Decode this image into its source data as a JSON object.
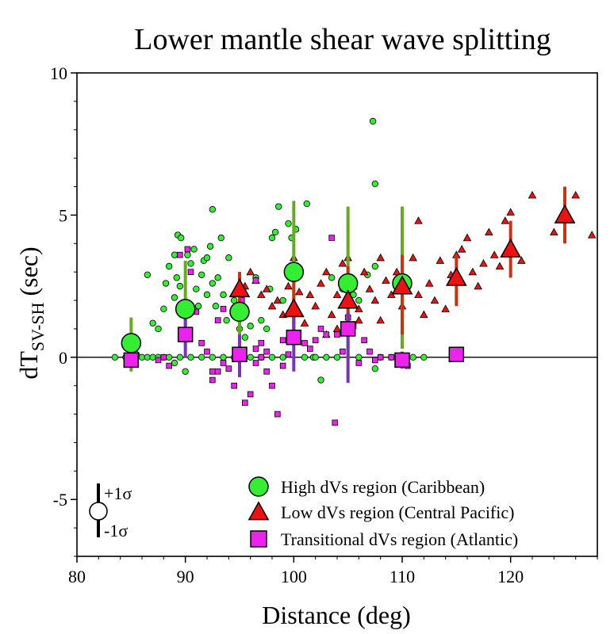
{
  "chart_data": {
    "type": "scatter",
    "title": "Lower mantle shear wave splitting",
    "xlabel": "Distance (deg)",
    "ylabel": {
      "main": "dT",
      "sub": "SV-SH",
      "unit": "(sec)"
    },
    "xlim": [
      80,
      128
    ],
    "ylim": [
      -7,
      10
    ],
    "xticks": [
      "80",
      "90",
      "100",
      "110",
      "120"
    ],
    "yticks": [
      "-5",
      "0",
      "5",
      "10"
    ],
    "grid": false,
    "zero_line": true,
    "legend_placement": "bottom-right",
    "sigma_key": {
      "plus": "+1σ",
      "minus": "-1σ"
    },
    "colors": {
      "high": "#33ee33",
      "low": "#ee1111",
      "transitional": "#ee22ee",
      "high_bar": "#66aa22",
      "low_bar": "#cc3311",
      "transitional_bar": "#7733bb"
    },
    "series": [
      {
        "key": "high",
        "name": "High dVs region (Caribbean)",
        "marker": "circle",
        "points": [
          [
            83.5,
            0
          ],
          [
            84.5,
            0
          ],
          [
            85.5,
            0.1
          ],
          [
            86,
            0
          ],
          [
            86.5,
            0
          ],
          [
            87,
            0
          ],
          [
            87.5,
            0
          ],
          [
            88,
            0
          ],
          [
            86.5,
            2.9
          ],
          [
            87,
            1.2
          ],
          [
            87.5,
            1
          ],
          [
            88,
            1.7
          ],
          [
            88.2,
            2.6
          ],
          [
            88.5,
            3.2
          ],
          [
            89,
            2.1
          ],
          [
            89.3,
            4.3
          ],
          [
            89.6,
            4.2
          ],
          [
            89,
            3.6
          ],
          [
            89.2,
            2.8
          ],
          [
            89.5,
            2.5
          ],
          [
            89.8,
            1.5
          ],
          [
            90.2,
            3.6
          ],
          [
            90.5,
            3.3
          ],
          [
            90.8,
            3.8
          ],
          [
            91,
            2.4
          ],
          [
            91.2,
            1.8
          ],
          [
            91.5,
            2.9
          ],
          [
            91.7,
            3.4
          ],
          [
            92,
            3.5
          ],
          [
            92.3,
            3.9
          ],
          [
            92.5,
            5.2
          ],
          [
            92,
            2.2
          ],
          [
            92.5,
            2.6
          ],
          [
            92.8,
            1.8
          ],
          [
            93,
            2.8
          ],
          [
            93.3,
            4.2
          ],
          [
            93.5,
            2.2
          ],
          [
            93.8,
            1.3
          ],
          [
            94,
            3.5
          ],
          [
            94.5,
            2.0
          ],
          [
            88.5,
            0
          ],
          [
            89.5,
            0
          ],
          [
            90.5,
            0
          ],
          [
            91.5,
            0
          ],
          [
            92.5,
            0
          ],
          [
            93.5,
            0
          ],
          [
            94.5,
            0
          ],
          [
            89,
            -0.2
          ],
          [
            90,
            -0.5
          ],
          [
            95,
            1.0
          ],
          [
            95.5,
            0.7
          ],
          [
            96,
            1.1
          ],
          [
            96.5,
            2.8
          ],
          [
            97,
            1.3
          ],
          [
            97.5,
            1.0
          ],
          [
            97.8,
            2.4
          ],
          [
            98,
            4.2
          ],
          [
            98.3,
            4.4
          ],
          [
            98.6,
            5.3
          ],
          [
            99,
            2.0
          ],
          [
            99.5,
            4.7
          ],
          [
            99.8,
            4.2
          ],
          [
            100.2,
            4.5
          ],
          [
            101.2,
            5.4
          ],
          [
            101.8,
            0
          ],
          [
            102.5,
            -0.8
          ],
          [
            96,
            0
          ],
          [
            97,
            0
          ],
          [
            98,
            0
          ],
          [
            99,
            0
          ],
          [
            101,
            0
          ],
          [
            102,
            0
          ],
          [
            103,
            0
          ],
          [
            104,
            0
          ],
          [
            106,
            0
          ],
          [
            108,
            0
          ],
          [
            109,
            0
          ],
          [
            111,
            0
          ],
          [
            112,
            0
          ],
          [
            107.5,
            -0.4
          ],
          [
            103.5,
            2.8
          ],
          [
            104.5,
            2.4
          ],
          [
            105.5,
            2.2
          ],
          [
            106,
            2.0
          ],
          [
            106.8,
            2.9
          ],
          [
            107.3,
            8.3
          ],
          [
            107.5,
            6.1
          ],
          [
            107.5,
            3.2
          ]
        ],
        "means": [
          [
            85,
            0.5
          ],
          [
            90,
            1.7
          ],
          [
            95,
            1.6
          ],
          [
            100,
            3.0
          ],
          [
            105,
            2.6
          ],
          [
            110,
            2.6
          ]
        ],
        "errors": [
          [
            85,
            -0.5,
            1.4
          ],
          [
            90,
            0.4,
            3.4
          ],
          [
            95,
            0.6,
            3.0
          ],
          [
            100,
            0.6,
            5.5
          ],
          [
            105,
            0.0,
            5.3
          ],
          [
            110,
            0.3,
            5.3
          ]
        ]
      },
      {
        "key": "low",
        "name": "Low dVs region (Central Pacific)",
        "marker": "triangle",
        "points": [
          [
            95.5,
            2.5
          ],
          [
            96,
            3.0
          ],
          [
            96.5,
            2.7
          ],
          [
            97,
            2.2
          ],
          [
            97.5,
            2.4
          ],
          [
            98,
            1.8
          ],
          [
            98.5,
            2.0
          ],
          [
            99,
            1.5
          ],
          [
            99.5,
            2.5
          ],
          [
            100,
            3.5
          ],
          [
            100.5,
            2.3
          ],
          [
            101,
            1.2
          ],
          [
            101.5,
            2.2
          ],
          [
            102,
            1.8
          ],
          [
            102.5,
            2.6
          ],
          [
            103,
            3.0
          ],
          [
            103.5,
            1.5
          ],
          [
            104,
            2.2
          ],
          [
            104.5,
            3.3
          ],
          [
            105.5,
            2.5
          ],
          [
            106,
            1.7
          ],
          [
            106.5,
            3.0
          ],
          [
            107,
            2.4
          ],
          [
            107.5,
            2.0
          ],
          [
            108,
            3.5
          ],
          [
            108.5,
            2.7
          ],
          [
            109,
            2.2
          ],
          [
            109.5,
            3.0
          ],
          [
            110,
            1.8
          ],
          [
            110.5,
            2.6
          ],
          [
            111,
            3.5
          ],
          [
            111.5,
            4.8
          ],
          [
            111.5,
            2.2
          ],
          [
            112,
            1.5
          ],
          [
            112.5,
            2.6
          ],
          [
            113,
            2.0
          ],
          [
            113.5,
            3.4
          ],
          [
            114,
            1.7
          ],
          [
            114.5,
            2.9
          ],
          [
            115,
            3.6
          ],
          [
            115.5,
            3.8
          ],
          [
            116,
            4.2
          ],
          [
            116.5,
            3.0
          ],
          [
            117,
            2.5
          ],
          [
            117.5,
            3.3
          ],
          [
            118,
            4.4
          ],
          [
            118.5,
            3.6
          ],
          [
            119,
            3.2
          ],
          [
            119.5,
            4.8
          ],
          [
            120,
            5.1
          ],
          [
            121,
            3.4
          ],
          [
            122,
            5.7
          ],
          [
            124,
            4.4
          ],
          [
            126,
            5.7
          ],
          [
            127.5,
            4.3
          ],
          [
            103,
            0.8
          ],
          [
            104,
            1.0
          ],
          [
            106,
            1.3
          ],
          [
            108,
            1.3
          ],
          [
            105,
            3.5
          ]
        ],
        "means": [
          [
            95,
            2.4
          ],
          [
            100,
            1.7
          ],
          [
            105,
            2.0
          ],
          [
            110,
            2.5
          ],
          [
            115,
            2.8
          ],
          [
            120,
            3.8
          ],
          [
            125,
            5.0
          ]
        ],
        "errors": [
          [
            95,
            1.8,
            3.0
          ],
          [
            100,
            0.5,
            3.0
          ],
          [
            105,
            0.8,
            3.2
          ],
          [
            110,
            0.8,
            3.6
          ],
          [
            115,
            1.8,
            3.6
          ],
          [
            120,
            2.8,
            4.8
          ],
          [
            125,
            4.0,
            6.0
          ]
        ]
      },
      {
        "key": "transitional",
        "name": "Transitional dVs region (Atlantic)",
        "marker": "square",
        "points": [
          [
            87.5,
            -0.1
          ],
          [
            88,
            0
          ],
          [
            88.5,
            -0.3
          ],
          [
            89.5,
            3.6
          ],
          [
            90.2,
            3.8
          ],
          [
            90.5,
            3.0
          ],
          [
            91,
            1.6
          ],
          [
            91.5,
            0.5
          ],
          [
            92,
            0.2
          ],
          [
            92.5,
            -0.5
          ],
          [
            93,
            1.3
          ],
          [
            93.5,
            1.7
          ],
          [
            92.5,
            -0.8
          ],
          [
            93,
            -0.5
          ],
          [
            94,
            -0.4
          ],
          [
            94.5,
            -1.0
          ],
          [
            95.5,
            -1.6
          ],
          [
            96,
            -1.3
          ],
          [
            96.5,
            0.3
          ],
          [
            97,
            0.0
          ],
          [
            97.5,
            -0.5
          ],
          [
            98,
            -1.0
          ],
          [
            98.5,
            -2.0
          ],
          [
            96.5,
            -0.2
          ],
          [
            97,
            0.5
          ],
          [
            97.5,
            0.2
          ],
          [
            99,
            -0.3
          ],
          [
            99.5,
            0.1
          ],
          [
            101,
            0.5
          ],
          [
            101.5,
            0.3
          ],
          [
            102,
            0.6
          ],
          [
            102.5,
            1.0
          ],
          [
            103,
            0.8
          ],
          [
            103.5,
            4.2
          ],
          [
            103.8,
            -2.3
          ],
          [
            104,
            0.8
          ],
          [
            104.5,
            0.2
          ],
          [
            105,
            1.4
          ],
          [
            105.5,
            1.1
          ],
          [
            106,
            -0.2
          ],
          [
            106.5,
            0.6
          ],
          [
            107,
            0.2
          ],
          [
            107.5,
            -0.1
          ],
          [
            108,
            0.0
          ],
          [
            109,
            0.0
          ],
          [
            110.5,
            -0.3
          ],
          [
            96.5,
            2.7
          ],
          [
            95.2,
            2.0
          ],
          [
            99,
            0.6
          ],
          [
            93.5,
            -0.2
          ]
        ],
        "means": [
          [
            85,
            -0.1
          ],
          [
            90,
            0.8
          ],
          [
            95,
            0.1
          ],
          [
            100,
            0.7
          ],
          [
            105,
            1.0
          ],
          [
            110,
            -0.1
          ],
          [
            115,
            0.1
          ]
        ],
        "errors": [
          [
            85,
            -0.3,
            0.1
          ],
          [
            90,
            0.0,
            1.6
          ],
          [
            95,
            -0.7,
            0.8
          ],
          [
            100,
            -0.5,
            1.7
          ],
          [
            105,
            -0.9,
            1.6
          ],
          [
            110,
            -0.4,
            0.2
          ],
          [
            115,
            0.0,
            0.2
          ]
        ]
      }
    ]
  }
}
